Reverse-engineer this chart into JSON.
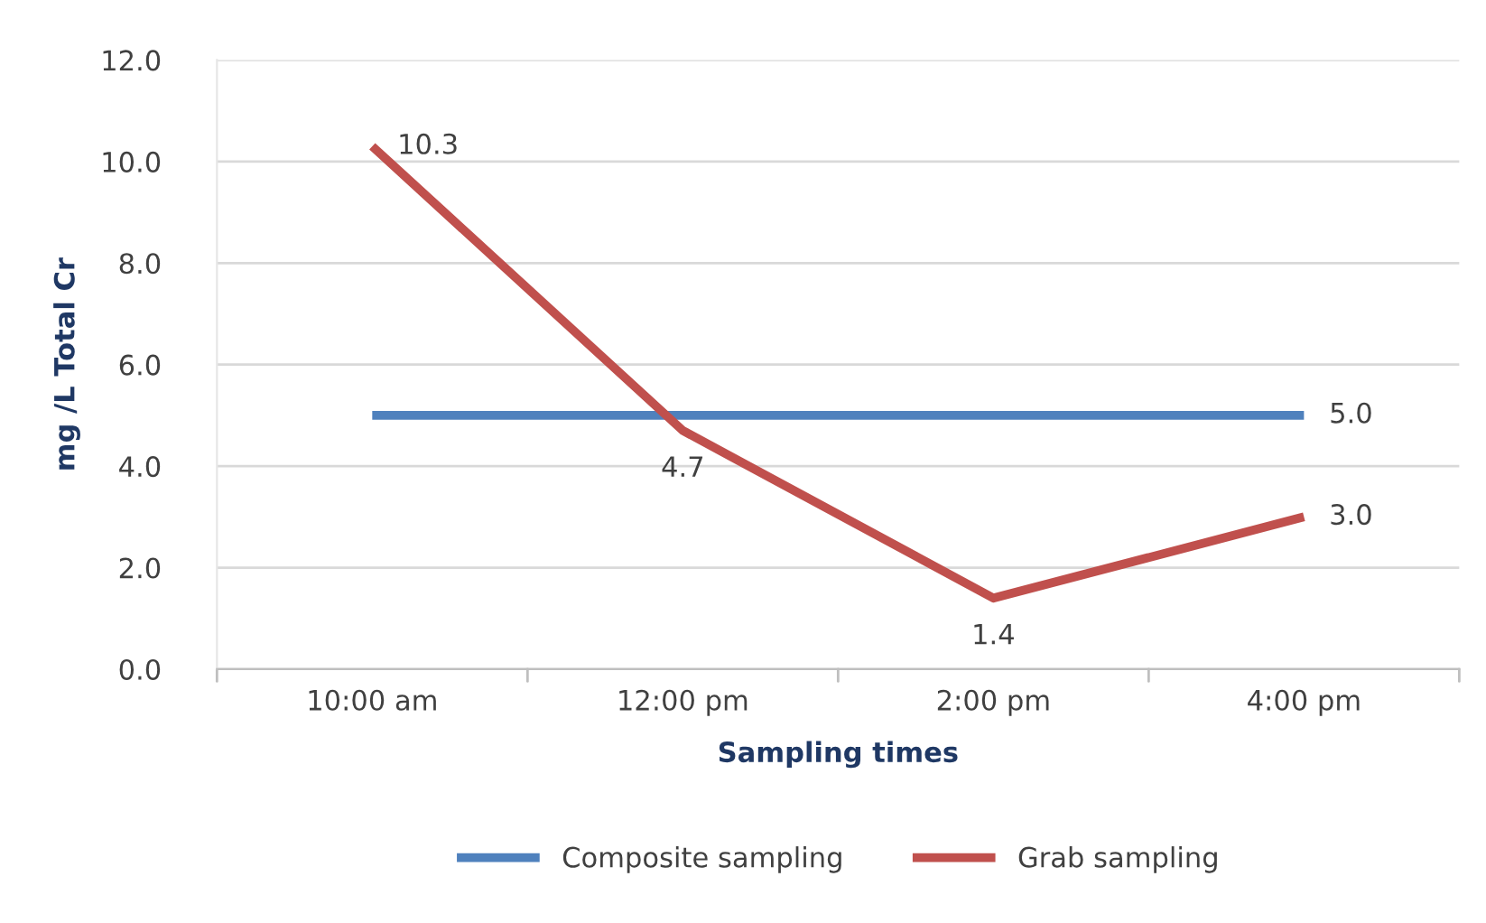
{
  "chart_data": {
    "type": "line",
    "xlabel": "Sampling times",
    "ylabel": "mg /L Total Cr",
    "categories": [
      "10:00 am",
      "12:00 pm",
      "2:00 pm",
      "4:00 pm"
    ],
    "series": [
      {
        "name": "Composite sampling",
        "color": "#4f81bd",
        "values": [
          5.0,
          5.0,
          5.0,
          5.0
        ],
        "value_labels": [
          null,
          null,
          null,
          "5.0"
        ]
      },
      {
        "name": "Grab sampling",
        "color": "#c0504d",
        "values": [
          10.3,
          4.7,
          1.4,
          3.0
        ],
        "value_labels": [
          "10.3",
          "4.7",
          "1.4",
          "3.0"
        ]
      }
    ],
    "ylim": [
      0,
      12
    ],
    "yticks": [
      {
        "value": 0,
        "label": "0.0"
      },
      {
        "value": 2,
        "label": "2.0"
      },
      {
        "value": 4,
        "label": "4.0"
      },
      {
        "value": 6,
        "label": "6.0"
      },
      {
        "value": 8,
        "label": "8.0"
      },
      {
        "value": 10,
        "label": "10.0"
      },
      {
        "value": 12,
        "label": "12.0"
      }
    ],
    "grid": "y",
    "legend": "bottom",
    "marker": "none",
    "line_style": "solid"
  }
}
